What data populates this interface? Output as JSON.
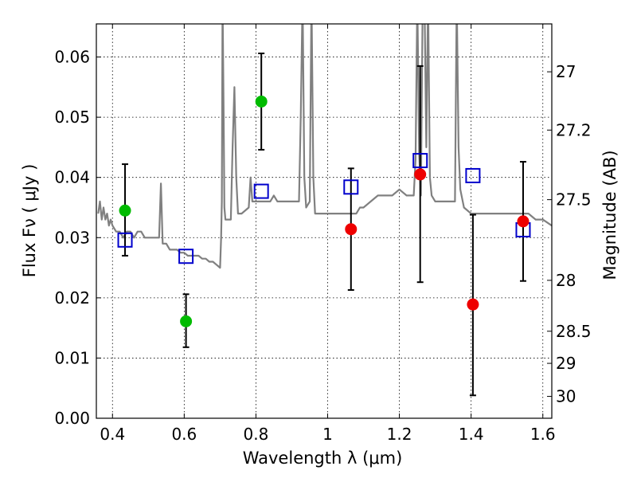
{
  "chart_data": {
    "type": "scatter",
    "title": "",
    "xlabel": "Wavelength  λ (μm)",
    "ylabel": "Flux  Fν  ( μJy )",
    "y2label": "Magnitude (AB)",
    "xlim": [
      0.355,
      1.625
    ],
    "ylim": [
      0.0,
      0.0655
    ],
    "grid": true,
    "xticks": [
      0.4,
      0.6,
      0.8,
      1.0,
      1.2,
      1.4,
      1.6
    ],
    "xtick_labels": [
      "0.4",
      "0.6",
      "0.8",
      "1",
      "1.2",
      "1.4",
      "1.6"
    ],
    "yticks": [
      0.0,
      0.01,
      0.02,
      0.03,
      0.04,
      0.05,
      0.06
    ],
    "ytick_labels": [
      "0.00",
      "0.01",
      "0.02",
      "0.03",
      "0.04",
      "0.05",
      "0.06"
    ],
    "y2ticks": [
      27,
      27.2,
      27.5,
      28,
      28.5,
      29,
      30
    ],
    "y2tick_labels": [
      "27",
      "27.2",
      "27.5",
      "28",
      "28.5",
      "29",
      "30"
    ],
    "colors": {
      "template": "#808080",
      "green": "#00bb00",
      "red": "#ee0000",
      "model": "#0000cc",
      "error": "#000000"
    },
    "series": [
      {
        "name": "model SED spectrum",
        "kind": "line",
        "x": [
          0.36,
          0.365,
          0.37,
          0.375,
          0.38,
          0.385,
          0.39,
          0.395,
          0.4,
          0.41,
          0.42,
          0.43,
          0.44,
          0.45,
          0.46,
          0.47,
          0.48,
          0.49,
          0.5,
          0.51,
          0.52,
          0.53,
          0.535,
          0.54,
          0.55,
          0.56,
          0.57,
          0.58,
          0.59,
          0.6,
          0.61,
          0.62,
          0.63,
          0.64,
          0.65,
          0.66,
          0.67,
          0.68,
          0.69,
          0.7,
          0.703,
          0.705,
          0.707,
          0.71,
          0.712,
          0.715,
          0.72,
          0.73,
          0.735,
          0.74,
          0.745,
          0.75,
          0.755,
          0.76,
          0.78,
          0.785,
          0.79,
          0.795,
          0.8,
          0.82,
          0.84,
          0.85,
          0.86,
          0.88,
          0.9,
          0.92,
          0.925,
          0.93,
          0.935,
          0.94,
          0.95,
          0.955,
          0.96,
          0.965,
          0.97,
          1.0,
          1.02,
          1.05,
          1.08,
          1.09,
          1.1,
          1.12,
          1.14,
          1.16,
          1.18,
          1.2,
          1.22,
          1.24,
          1.245,
          1.25,
          1.255,
          1.26,
          1.265,
          1.27,
          1.275,
          1.28,
          1.285,
          1.29,
          1.3,
          1.32,
          1.34,
          1.355,
          1.36,
          1.365,
          1.37,
          1.38,
          1.4,
          1.42,
          1.44,
          1.46,
          1.48,
          1.5,
          1.52,
          1.54,
          1.56,
          1.58,
          1.6,
          1.625
        ],
        "y": [
          0.034,
          0.036,
          0.033,
          0.035,
          0.033,
          0.034,
          0.032,
          0.033,
          0.032,
          0.031,
          0.031,
          0.03,
          0.031,
          0.031,
          0.03,
          0.031,
          0.031,
          0.03,
          0.03,
          0.03,
          0.03,
          0.03,
          0.039,
          0.029,
          0.029,
          0.028,
          0.028,
          0.028,
          0.0275,
          0.0275,
          0.027,
          0.027,
          0.027,
          0.027,
          0.0265,
          0.0265,
          0.026,
          0.026,
          0.0255,
          0.025,
          0.03,
          0.036,
          0.07,
          0.05,
          0.035,
          0.033,
          0.033,
          0.033,
          0.045,
          0.055,
          0.04,
          0.034,
          0.034,
          0.034,
          0.035,
          0.04,
          0.036,
          0.036,
          0.036,
          0.036,
          0.036,
          0.037,
          0.036,
          0.036,
          0.036,
          0.036,
          0.05,
          0.07,
          0.04,
          0.035,
          0.036,
          0.07,
          0.04,
          0.034,
          0.034,
          0.034,
          0.034,
          0.034,
          0.034,
          0.035,
          0.035,
          0.036,
          0.037,
          0.037,
          0.037,
          0.038,
          0.037,
          0.037,
          0.043,
          0.07,
          0.044,
          0.037,
          0.07,
          0.07,
          0.045,
          0.07,
          0.04,
          0.037,
          0.036,
          0.036,
          0.036,
          0.036,
          0.07,
          0.045,
          0.038,
          0.035,
          0.034,
          0.034,
          0.034,
          0.034,
          0.034,
          0.034,
          0.034,
          0.034,
          0.034,
          0.033,
          0.033,
          0.032
        ]
      },
      {
        "name": "observed flux (green)",
        "kind": "points",
        "x": [
          0.435,
          0.605,
          0.815
        ],
        "y": [
          0.0345,
          0.0161,
          0.0526
        ],
        "yerr_low": [
          0.027,
          0.0118,
          0.0446
        ],
        "yerr_high": [
          0.0422,
          0.0206,
          0.0606
        ]
      },
      {
        "name": "observed flux (red)",
        "kind": "points",
        "x": [
          1.065,
          1.258,
          1.405,
          1.545
        ],
        "y": [
          0.0314,
          0.0405,
          0.0189,
          0.0327
        ],
        "yerr_low": [
          0.0213,
          0.0226,
          0.0038,
          0.0228
        ],
        "yerr_high": [
          0.0415,
          0.0585,
          0.0338,
          0.0426
        ]
      },
      {
        "name": "model band flux",
        "kind": "open-squares",
        "x": [
          0.435,
          0.605,
          0.815,
          1.065,
          1.258,
          1.405,
          1.545
        ],
        "y": [
          0.0296,
          0.0269,
          0.0377,
          0.0384,
          0.0428,
          0.0403,
          0.0313
        ]
      }
    ]
  }
}
